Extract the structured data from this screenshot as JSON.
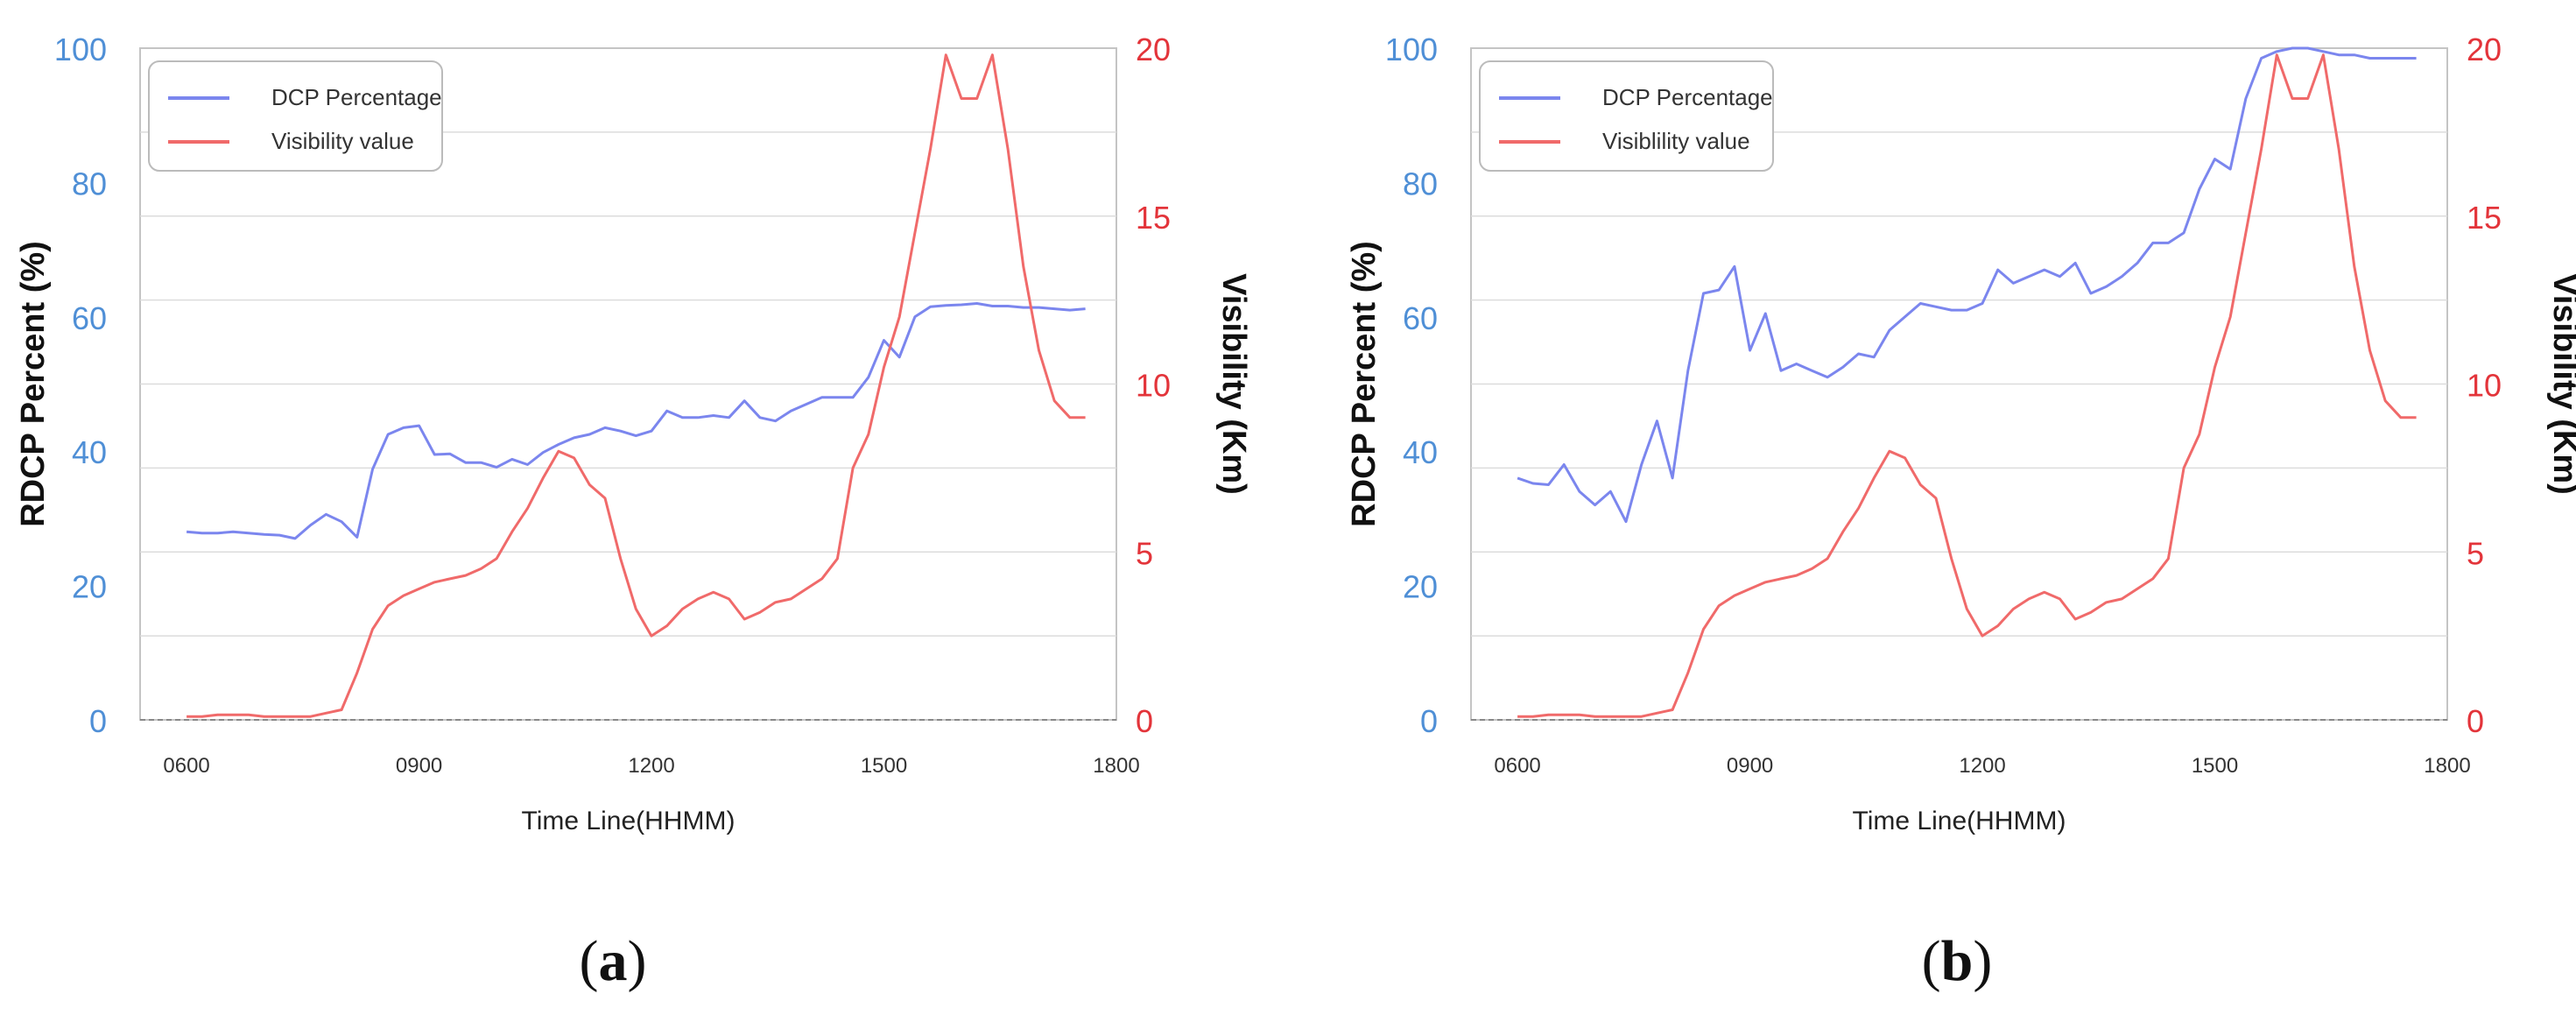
{
  "colors": {
    "blue": "#7b86ee",
    "red": "#f06a6a",
    "left_axis_text": "#4f8fd6",
    "right_axis_text": "#e3343a",
    "grid": "#dcdcdc",
    "frame": "#c4c4c4"
  },
  "x_ticks": [
    "0600",
    "0900",
    "1200",
    "1500",
    "1800"
  ],
  "left_ticks": [
    "0",
    "20",
    "40",
    "60",
    "80",
    "100"
  ],
  "right_ticks": [
    "0",
    "5",
    "10",
    "15",
    "20"
  ],
  "xlabel": "Time Line(HHMM)",
  "ylabel_left": "RDCP Percent (%)",
  "ylabel_right": "Visibility (Km)",
  "panels": [
    {
      "label_open": "(",
      "label_letter": "a",
      "label_close": ")",
      "legend": [
        "DCP Percentage",
        "Visibility value"
      ]
    },
    {
      "label_open": "(",
      "label_letter": "b",
      "label_close": ")",
      "legend": [
        "DCP Percentage",
        "Visiblility value"
      ]
    }
  ],
  "chart_data": [
    {
      "type": "line",
      "xlabel": "Time Line(HHMM)",
      "ylabel": "RDCP Percent (%)",
      "ylabel_right": "Visibility (Km)",
      "xlim": [
        540,
        1800
      ],
      "ylim": [
        0,
        100
      ],
      "ylim_right": [
        0,
        20
      ],
      "x_ticks": [
        600,
        900,
        1200,
        1500,
        1800
      ],
      "grid": true,
      "legend_position": "top-left",
      "series": [
        {
          "name": "DCP Percentage",
          "axis": "left",
          "color": "#7b86ee",
          "x": [
            600,
            620,
            640,
            660,
            680,
            700,
            720,
            740,
            760,
            780,
            800,
            820,
            840,
            860,
            880,
            900,
            920,
            940,
            960,
            980,
            1000,
            1020,
            1040,
            1060,
            1080,
            1100,
            1120,
            1140,
            1160,
            1180,
            1200,
            1220,
            1240,
            1260,
            1280,
            1300,
            1320,
            1340,
            1360,
            1380,
            1400,
            1420,
            1440,
            1460,
            1480,
            1500,
            1520,
            1540,
            1560,
            1580,
            1600,
            1620,
            1640,
            1660,
            1680,
            1700,
            1720,
            1740,
            1760
          ],
          "y": [
            28.0,
            27.8,
            27.8,
            28.0,
            27.8,
            27.6,
            27.5,
            27.0,
            29.0,
            30.6,
            29.5,
            27.2,
            37.3,
            42.5,
            43.5,
            43.8,
            39.5,
            39.6,
            38.3,
            38.3,
            37.6,
            38.8,
            38.0,
            39.8,
            41.0,
            42.0,
            42.5,
            43.5,
            43.0,
            42.3,
            43.0,
            46.0,
            45.0,
            45.0,
            45.3,
            45.0,
            47.5,
            45.0,
            44.5,
            46.0,
            47.0,
            48.0,
            48.0,
            48.0,
            51.0,
            56.5,
            54.0,
            60.0,
            61.5,
            61.7,
            61.8,
            62.0,
            61.6,
            61.6,
            61.4,
            61.4,
            61.2,
            61.0,
            61.2
          ]
        },
        {
          "name": "Visibility value",
          "axis": "right",
          "color": "#f06a6a",
          "x": [
            600,
            620,
            640,
            660,
            680,
            700,
            720,
            740,
            760,
            780,
            800,
            820,
            840,
            860,
            880,
            900,
            920,
            940,
            960,
            980,
            1000,
            1020,
            1040,
            1060,
            1080,
            1100,
            1120,
            1140,
            1160,
            1180,
            1200,
            1220,
            1240,
            1260,
            1280,
            1300,
            1320,
            1340,
            1360,
            1380,
            1400,
            1420,
            1440,
            1460,
            1480,
            1500,
            1520,
            1540,
            1560,
            1580,
            1600,
            1620,
            1640,
            1660,
            1680,
            1700,
            1720,
            1740,
            1760
          ],
          "y": [
            0.1,
            0.1,
            0.15,
            0.15,
            0.15,
            0.1,
            0.1,
            0.1,
            0.1,
            0.2,
            0.3,
            1.4,
            2.7,
            3.4,
            3.7,
            3.9,
            4.1,
            4.2,
            4.3,
            4.5,
            4.8,
            5.6,
            6.3,
            7.2,
            8.0,
            7.8,
            7.0,
            6.6,
            4.8,
            3.3,
            2.5,
            2.8,
            3.3,
            3.6,
            3.8,
            3.6,
            3.0,
            3.2,
            3.5,
            3.6,
            3.9,
            4.2,
            4.8,
            7.5,
            8.5,
            10.5,
            12.0,
            14.5,
            17.0,
            19.8,
            18.5,
            18.5,
            19.8,
            17.0,
            13.5,
            11.0,
            9.5,
            9.0,
            9.0
          ]
        }
      ]
    },
    {
      "type": "line",
      "xlabel": "Time Line(HHMM)",
      "ylabel": "RDCP Percent (%)",
      "ylabel_right": "Visibility (Km)",
      "xlim": [
        540,
        1800
      ],
      "ylim": [
        0,
        100
      ],
      "ylim_right": [
        0,
        20
      ],
      "x_ticks": [
        600,
        900,
        1200,
        1500,
        1800
      ],
      "grid": true,
      "legend_position": "top-left",
      "series": [
        {
          "name": "DCP Percentage",
          "axis": "left",
          "color": "#7b86ee",
          "x": [
            600,
            620,
            640,
            660,
            680,
            700,
            720,
            740,
            760,
            780,
            800,
            820,
            840,
            860,
            880,
            900,
            920,
            940,
            960,
            980,
            1000,
            1020,
            1040,
            1060,
            1080,
            1100,
            1120,
            1140,
            1160,
            1180,
            1200,
            1220,
            1240,
            1260,
            1280,
            1300,
            1320,
            1340,
            1360,
            1380,
            1400,
            1420,
            1440,
            1460,
            1480,
            1500,
            1520,
            1540,
            1560,
            1580,
            1600,
            1620,
            1640,
            1660,
            1680,
            1700,
            1720,
            1740,
            1760
          ],
          "y": [
            36.0,
            35.2,
            35.0,
            38.0,
            34.0,
            32.0,
            34.0,
            29.5,
            38.0,
            44.5,
            36.0,
            52.0,
            63.5,
            64.0,
            67.5,
            55.0,
            60.5,
            52.0,
            53.0,
            52.0,
            51.0,
            52.5,
            54.5,
            54.0,
            58.0,
            60.0,
            62.0,
            61.5,
            61.0,
            61.0,
            62.0,
            67.0,
            65.0,
            66.0,
            67.0,
            66.0,
            68.0,
            63.5,
            64.5,
            66.0,
            68.0,
            71.0,
            71.0,
            72.5,
            79.0,
            83.5,
            82.0,
            92.5,
            98.5,
            99.5,
            100.0,
            100.0,
            99.5,
            99.0,
            99.0,
            98.5,
            98.5,
            98.5,
            98.5
          ]
        },
        {
          "name": "Visiblility value",
          "axis": "right",
          "color": "#f06a6a",
          "x": [
            600,
            620,
            640,
            660,
            680,
            700,
            720,
            740,
            760,
            780,
            800,
            820,
            840,
            860,
            880,
            900,
            920,
            940,
            960,
            980,
            1000,
            1020,
            1040,
            1060,
            1080,
            1100,
            1120,
            1140,
            1160,
            1180,
            1200,
            1220,
            1240,
            1260,
            1280,
            1300,
            1320,
            1340,
            1360,
            1380,
            1400,
            1420,
            1440,
            1460,
            1480,
            1500,
            1520,
            1540,
            1560,
            1580,
            1600,
            1620,
            1640,
            1660,
            1680,
            1700,
            1720,
            1740,
            1760
          ],
          "y": [
            0.1,
            0.1,
            0.15,
            0.15,
            0.15,
            0.1,
            0.1,
            0.1,
            0.1,
            0.2,
            0.3,
            1.4,
            2.7,
            3.4,
            3.7,
            3.9,
            4.1,
            4.2,
            4.3,
            4.5,
            4.8,
            5.6,
            6.3,
            7.2,
            8.0,
            7.8,
            7.0,
            6.6,
            4.8,
            3.3,
            2.5,
            2.8,
            3.3,
            3.6,
            3.8,
            3.6,
            3.0,
            3.2,
            3.5,
            3.6,
            3.9,
            4.2,
            4.8,
            7.5,
            8.5,
            10.5,
            12.0,
            14.5,
            17.0,
            19.8,
            18.5,
            18.5,
            19.8,
            17.0,
            13.5,
            11.0,
            9.5,
            9.0,
            9.0
          ]
        }
      ]
    }
  ]
}
